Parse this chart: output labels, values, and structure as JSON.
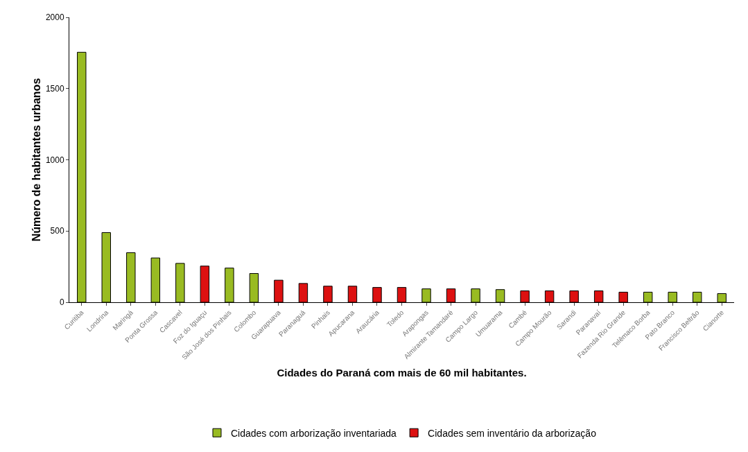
{
  "chart_data": {
    "type": "bar",
    "xlabel": "Cidades do Paraná com mais de 60 mil habitantes.",
    "ylabel": "Número de habitantes urbanos",
    "categories": [
      "Curitiba",
      "Londrina",
      "Maringá",
      "Ponta Grossa",
      "Cascavel",
      "Foz do Iguaçu",
      "São José dos Pinhais",
      "Colombo",
      "Guarapuava",
      "Paranaguá",
      "Pinhais",
      "Apucarana",
      "Araucária",
      "Toledo",
      "Arapongas",
      "Almirante Tamandaré",
      "Campo Largo",
      "Umuarama",
      "Cambé",
      "Campo Mourão",
      "Sarandi",
      "Paranavaí",
      "Fazenda Rio Grande",
      "Telêmaco Borba",
      "Pato Branco",
      "Francisco Beltrão",
      "Cianorte"
    ],
    "series": [
      {
        "name": "Cidades com arborização inventariada",
        "color": "#99bb22",
        "values": [
          1755,
          489,
          348,
          311,
          273,
          null,
          240,
          202,
          null,
          null,
          null,
          null,
          null,
          null,
          94,
          null,
          94,
          89,
          null,
          null,
          null,
          null,
          null,
          71,
          71,
          71,
          61
        ]
      },
      {
        "name": "Cidades sem inventário da arborização",
        "color": "#dd1111",
        "values": [
          null,
          null,
          null,
          null,
          null,
          254,
          null,
          null,
          155,
          132,
          113,
          113,
          104,
          104,
          null,
          94,
          null,
          null,
          80,
          80,
          80,
          80,
          71,
          null,
          null,
          null,
          null
        ]
      }
    ],
    "ylim": [
      0,
      2000
    ],
    "yticks": [
      0,
      500,
      1000,
      1500,
      2000
    ],
    "grid": false,
    "legend": "bottom"
  }
}
